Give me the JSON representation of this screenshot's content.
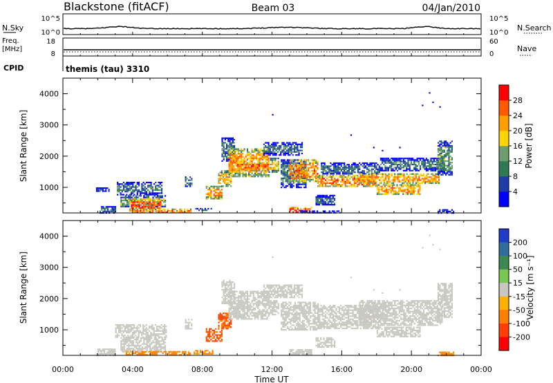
{
  "header": {
    "station": "Blackstone (fitACF)",
    "beam": "Beam 03",
    "date": "04/Jan/2010"
  },
  "top_panels": {
    "nsky_label": "N.Sky",
    "nsearch_label": "N.Search",
    "noise_ticks": [
      "10^5",
      "10^0"
    ],
    "freq_label": "Freq.",
    "freq_unit": "[MHz]",
    "freq_ticks": [
      "18",
      "8"
    ],
    "nave_label": "Nave",
    "nave_ticks": [
      "60",
      "0"
    ],
    "cpid_label": "CPID",
    "cpid_value": "themis (tau) 3310"
  },
  "time_axis": {
    "label": "Time UT",
    "ticks": [
      "00:00",
      "04:00",
      "08:00",
      "12:00",
      "16:00",
      "20:00",
      "00:00"
    ]
  },
  "chart_data": [
    {
      "type": "heatmap",
      "name": "power",
      "xlabel": "Time UT",
      "ylabel": "Slant Range [km]",
      "xlim_hours": [
        0,
        24
      ],
      "ylim_km": [
        180,
        4500
      ],
      "yticks": [
        "1000",
        "2000",
        "3000",
        "4000"
      ],
      "colorbar": {
        "label": "Power [dB]",
        "ticks": [
          "4",
          "8",
          "12",
          "16",
          "20",
          "24",
          "28"
        ],
        "colors": [
          "#0000ff",
          "#1e3ca8",
          "#2e7a52",
          "#6e9e6e",
          "#ffd400",
          "#ffa000",
          "#ff5a00",
          "#ff0000"
        ]
      },
      "regions": [
        {
          "t": [
            2.1,
            3.0
          ],
          "r": [
            200,
            400
          ],
          "v": 8
        },
        {
          "t": [
            1.9,
            2.6
          ],
          "r": [
            880,
            1000
          ],
          "v": 5
        },
        {
          "t": [
            3.1,
            5.7
          ],
          "r": [
            780,
            1180
          ],
          "v": 9
        },
        {
          "t": [
            3.3,
            5.9
          ],
          "r": [
            380,
            750
          ],
          "v": 14
        },
        {
          "t": [
            3.9,
            5.6
          ],
          "r": [
            250,
            650
          ],
          "v": 27
        },
        {
          "t": [
            3.8,
            7.3
          ],
          "r": [
            190,
            320
          ],
          "v": 24
        },
        {
          "t": [
            7.0,
            7.4
          ],
          "r": [
            1050,
            1350
          ],
          "v": 10
        },
        {
          "t": [
            7.6,
            8.5
          ],
          "r": [
            260,
            340
          ],
          "v": 9
        },
        {
          "t": [
            8.2,
            9.1
          ],
          "r": [
            650,
            1050
          ],
          "v": 22
        },
        {
          "t": [
            8.9,
            9.6
          ],
          "r": [
            1050,
            1550
          ],
          "v": 20
        },
        {
          "t": [
            9.1,
            9.8
          ],
          "r": [
            1850,
            2600
          ],
          "v": 9
        },
        {
          "t": [
            9.5,
            11.8
          ],
          "r": [
            1350,
            2250
          ],
          "v": 22
        },
        {
          "t": [
            10.0,
            11.8
          ],
          "r": [
            1550,
            1800
          ],
          "v": 25
        },
        {
          "t": [
            11.5,
            13.7
          ],
          "r": [
            2050,
            2450
          ],
          "v": 9
        },
        {
          "t": [
            11.8,
            12.4
          ],
          "r": [
            1500,
            1950
          ],
          "v": 18
        },
        {
          "t": [
            12.5,
            13.9
          ],
          "r": [
            1000,
            1900
          ],
          "v": 10
        },
        {
          "t": [
            13.0,
            14.6
          ],
          "r": [
            1200,
            1900
          ],
          "v": 24
        },
        {
          "t": [
            13.0,
            14.3
          ],
          "r": [
            200,
            380
          ],
          "v": 27
        },
        {
          "t": [
            13.6,
            15.9
          ],
          "r": [
            180,
            260
          ],
          "v": 7
        },
        {
          "t": [
            14.6,
            18.0
          ],
          "r": [
            1050,
            1400
          ],
          "v": 24
        },
        {
          "t": [
            14.8,
            18.2
          ],
          "r": [
            1450,
            1800
          ],
          "v": 8
        },
        {
          "t": [
            14.5,
            15.6
          ],
          "r": [
            420,
            760
          ],
          "v": 8
        },
        {
          "t": [
            17.0,
            21.6
          ],
          "r": [
            1150,
            1450
          ],
          "v": 22
        },
        {
          "t": [
            18.2,
            21.8
          ],
          "r": [
            1550,
            1950
          ],
          "v": 9
        },
        {
          "t": [
            18.0,
            20.5
          ],
          "r": [
            800,
            1100
          ],
          "v": 22
        },
        {
          "t": [
            21.5,
            22.3
          ],
          "r": [
            1400,
            2500
          ],
          "v": 12
        },
        {
          "t": [
            21.5,
            22.4
          ],
          "r": [
            200,
            300
          ],
          "v": 5
        }
      ]
    },
    {
      "type": "heatmap",
      "name": "velocity",
      "xlabel": "Time UT",
      "ylabel": "Slant Range [km]",
      "xlim_hours": [
        0,
        24
      ],
      "ylim_km": [
        180,
        4500
      ],
      "yticks": [
        "1000",
        "2000",
        "3000",
        "4000"
      ],
      "colorbar": {
        "label": "Velocity [m s⁻¹]",
        "ticks": [
          "200",
          "100",
          "50",
          "15",
          "-15",
          "-50",
          "-100",
          "-200"
        ],
        "colors": [
          "#1e3cc8",
          "#2e6e9a",
          "#3c8a50",
          "#78c850",
          "#c8c8c0",
          "#ffb000",
          "#ff8000",
          "#ff4000",
          "#ff0000"
        ]
      },
      "regions": [
        {
          "t": [
            1.9,
            3.0
          ],
          "r": [
            200,
            400
          ],
          "v": 0
        },
        {
          "t": [
            3.0,
            5.9
          ],
          "r": [
            780,
            1180
          ],
          "v": 0
        },
        {
          "t": [
            3.3,
            5.9
          ],
          "r": [
            320,
            760
          ],
          "v": 0
        },
        {
          "t": [
            3.6,
            7.3
          ],
          "r": [
            190,
            320
          ],
          "v": -40
        },
        {
          "t": [
            7.0,
            7.4
          ],
          "r": [
            1050,
            1350
          ],
          "v": 0
        },
        {
          "t": [
            7.5,
            8.6
          ],
          "r": [
            250,
            350
          ],
          "v": -40
        },
        {
          "t": [
            8.2,
            9.1
          ],
          "r": [
            650,
            1050
          ],
          "v": -80
        },
        {
          "t": [
            8.9,
            9.6
          ],
          "r": [
            1050,
            1550
          ],
          "v": -80
        },
        {
          "t": [
            9.1,
            9.8
          ],
          "r": [
            1850,
            2600
          ],
          "v": 0
        },
        {
          "t": [
            9.5,
            11.8
          ],
          "r": [
            1350,
            2250
          ],
          "v": 0
        },
        {
          "t": [
            11.5,
            13.7
          ],
          "r": [
            2050,
            2450
          ],
          "v": 0
        },
        {
          "t": [
            11.8,
            12.4
          ],
          "r": [
            1500,
            1950
          ],
          "v": 0
        },
        {
          "t": [
            12.5,
            14.6
          ],
          "r": [
            1000,
            1900
          ],
          "v": 0
        },
        {
          "t": [
            13.0,
            14.3
          ],
          "r": [
            200,
            380
          ],
          "v": 0
        },
        {
          "t": [
            14.5,
            15.6
          ],
          "r": [
            420,
            760
          ],
          "v": 0
        },
        {
          "t": [
            14.6,
            18.2
          ],
          "r": [
            1050,
            1800
          ],
          "v": 0
        },
        {
          "t": [
            17.0,
            21.8
          ],
          "r": [
            1150,
            1950
          ],
          "v": 0
        },
        {
          "t": [
            18.0,
            20.5
          ],
          "r": [
            800,
            1100
          ],
          "v": 0
        },
        {
          "t": [
            21.5,
            22.3
          ],
          "r": [
            1400,
            2500
          ],
          "v": 0
        },
        {
          "t": [
            21.5,
            22.4
          ],
          "r": [
            200,
            300
          ],
          "v": -40
        }
      ]
    }
  ]
}
